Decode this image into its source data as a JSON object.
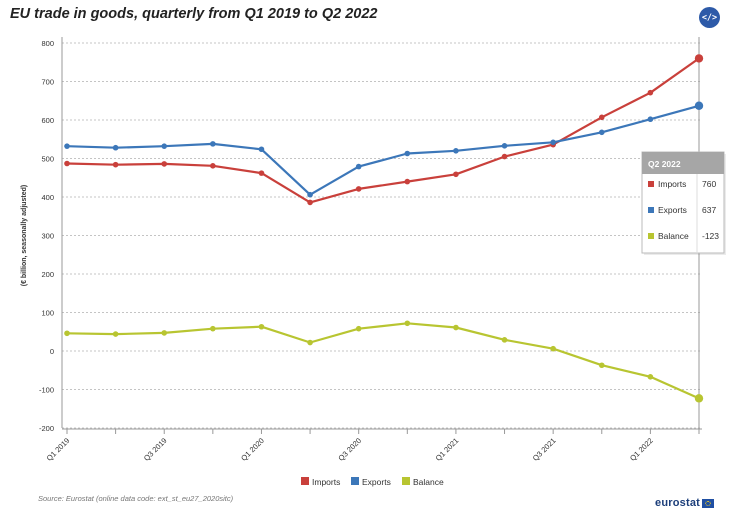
{
  "title": "EU trade in goods, quarterly from Q1 2019 to Q2 2022",
  "embed_label": "</>",
  "source": "Source: Eurostat (online data code: ext_st_eu27_2020sitc)",
  "brand": "eurostat",
  "tooltip": {
    "header": "Q2 2022",
    "rows": [
      {
        "name": "Imports",
        "value": "760",
        "color": "#c9403b"
      },
      {
        "name": "Exports",
        "value": "637",
        "color": "#3c77b9"
      },
      {
        "name": "Balance",
        "value": "-123",
        "color": "#b8c531"
      }
    ]
  },
  "chart_data": {
    "type": "line",
    "ylabel": "(€ billion, seasonally adjusted)",
    "ylim": [
      -200,
      800
    ],
    "yticks": [
      800,
      700,
      600,
      500,
      400,
      300,
      200,
      100,
      0,
      -100,
      -200
    ],
    "grid": true,
    "legend_position": "bottom",
    "categories": [
      "Q1 2019",
      "Q2 2019",
      "Q3 2019",
      "Q4 2019",
      "Q1 2020",
      "Q2 2020",
      "Q3 2020",
      "Q4 2020",
      "Q1 2021",
      "Q2 2021",
      "Q3 2021",
      "Q4 2021",
      "Q1 2022",
      "Q2 2022"
    ],
    "tick_labels": [
      "Q1 2019",
      "",
      "Q3 2019",
      "",
      "Q1 2020",
      "",
      "Q3 2020",
      "",
      "Q1 2021",
      "",
      "Q3 2021",
      "",
      "Q1 2022",
      ""
    ],
    "highlight_index": 13,
    "series": [
      {
        "name": "Imports",
        "color": "#c9403b",
        "values": [
          487,
          484,
          486,
          481,
          462,
          386,
          421,
          440,
          459,
          505,
          536,
          607,
          671,
          760
        ]
      },
      {
        "name": "Exports",
        "color": "#3c77b9",
        "values": [
          532,
          528,
          532,
          538,
          524,
          406,
          479,
          513,
          520,
          533,
          542,
          568,
          602,
          637
        ]
      },
      {
        "name": "Balance",
        "color": "#b8c531",
        "values": [
          46,
          44,
          47,
          58,
          63,
          22,
          58,
          72,
          61,
          29,
          6,
          -37,
          -67,
          -123
        ]
      }
    ]
  }
}
